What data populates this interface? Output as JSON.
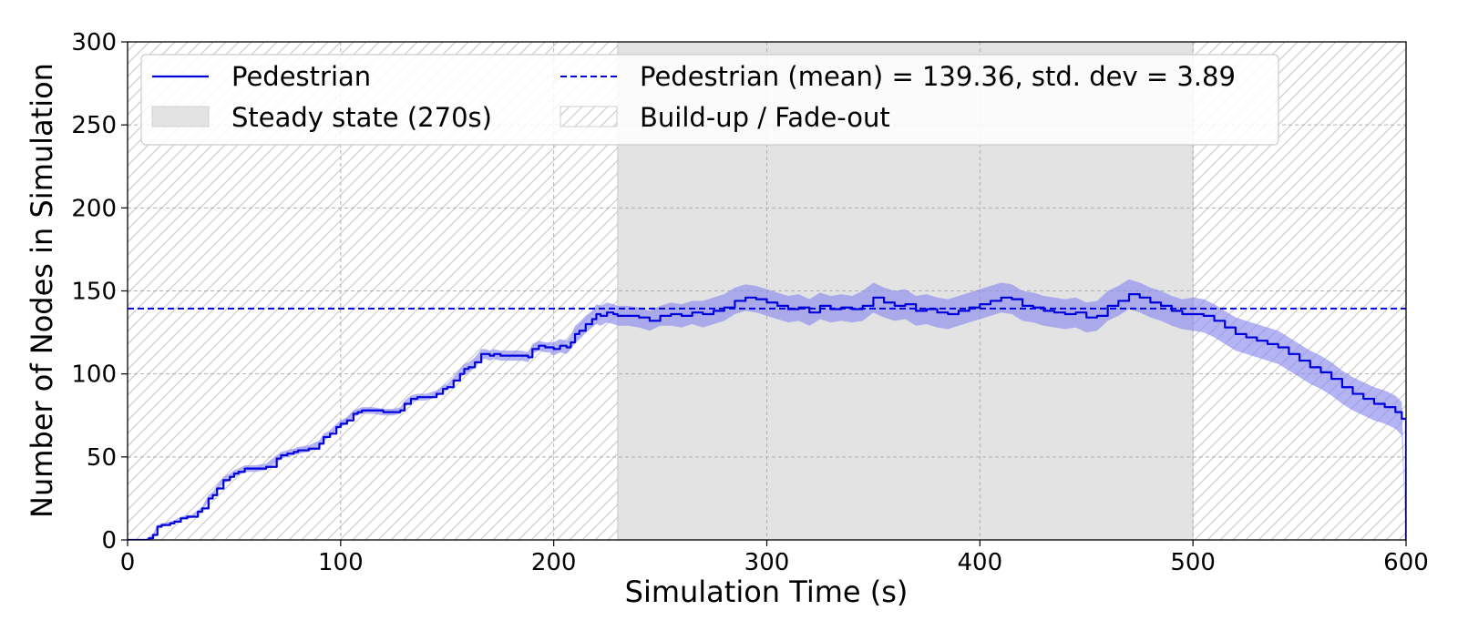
{
  "chart_data": {
    "type": "line",
    "xlabel": "Simulation Time (s)",
    "ylabel": "Number of Nodes in Simulation",
    "xlim": [
      0,
      600
    ],
    "ylim": [
      0,
      300
    ],
    "x_ticks": [
      0,
      100,
      200,
      300,
      400,
      500,
      600
    ],
    "y_ticks": [
      0,
      50,
      100,
      150,
      200,
      250,
      300
    ],
    "grid": true,
    "legend_position": "top",
    "regions": [
      {
        "type": "hatch",
        "from": 0,
        "to": 230,
        "legend": "Build-up / Fade-out"
      },
      {
        "type": "shade",
        "from": 230,
        "to": 500,
        "legend": "Steady state (270s)"
      },
      {
        "type": "hatch",
        "from": 500,
        "to": 600,
        "legend": "Build-up / Fade-out"
      }
    ],
    "mean_line": {
      "value": 139.36,
      "std": 3.89,
      "label": "Pedestrian (mean) = 139.36, std. dev = 3.89"
    },
    "series": [
      {
        "name": "Pedestrian",
        "color": "#0000dd",
        "band_color": "#8c8cf0",
        "x": [
          0,
          5,
          8,
          10,
          12,
          14,
          16,
          20,
          22,
          25,
          28,
          30,
          33,
          35,
          38,
          40,
          42,
          45,
          48,
          50,
          52,
          55,
          60,
          65,
          70,
          72,
          75,
          78,
          80,
          85,
          90,
          92,
          95,
          98,
          100,
          103,
          106,
          108,
          110,
          112,
          115,
          120,
          125,
          128,
          130,
          133,
          136,
          140,
          145,
          148,
          150,
          153,
          156,
          158,
          160,
          163,
          166,
          168,
          170,
          172,
          175,
          180,
          185,
          188,
          190,
          193,
          196,
          198,
          200,
          203,
          206,
          208,
          210,
          212,
          215,
          218,
          220,
          222,
          225,
          228,
          230,
          235,
          240,
          245,
          250,
          255,
          260,
          265,
          270,
          275,
          280,
          285,
          290,
          295,
          300,
          305,
          310,
          315,
          320,
          325,
          330,
          335,
          340,
          345,
          350,
          355,
          360,
          365,
          370,
          375,
          380,
          385,
          390,
          395,
          400,
          405,
          410,
          415,
          420,
          425,
          430,
          435,
          440,
          445,
          450,
          455,
          460,
          465,
          470,
          475,
          480,
          485,
          490,
          495,
          500,
          505,
          510,
          515,
          520,
          525,
          530,
          535,
          540,
          545,
          550,
          555,
          560,
          565,
          570,
          575,
          580,
          585,
          590,
          595,
          598,
          600
        ],
        "y": [
          0,
          0,
          0,
          1,
          3,
          8,
          9,
          10,
          11,
          13,
          14,
          14,
          17,
          19,
          25,
          27,
          31,
          36,
          38,
          40,
          41,
          43,
          43,
          44,
          49,
          51,
          52,
          53,
          54,
          55,
          58,
          62,
          64,
          68,
          70,
          72,
          76,
          77,
          78,
          78,
          78,
          77,
          77,
          78,
          82,
          85,
          86,
          86,
          88,
          91,
          92,
          96,
          100,
          103,
          104,
          107,
          112,
          112,
          111,
          112,
          111,
          111,
          111,
          110,
          115,
          117,
          116,
          116,
          115,
          117,
          116,
          119,
          124,
          126,
          130,
          133,
          136,
          135,
          137,
          136,
          135,
          135,
          134,
          132,
          135,
          136,
          135,
          137,
          136,
          138,
          140,
          144,
          146,
          145,
          143,
          141,
          139,
          140,
          137,
          141,
          139,
          140,
          139,
          141,
          146,
          143,
          141,
          142,
          138,
          139,
          137,
          136,
          138,
          140,
          142,
          144,
          146,
          145,
          141,
          140,
          138,
          137,
          136,
          137,
          134,
          135,
          141,
          144,
          148,
          146,
          143,
          141,
          138,
          136,
          136,
          135,
          132,
          128,
          124,
          122,
          120,
          118,
          116,
          112,
          108,
          104,
          101,
          97,
          92,
          88,
          85,
          82,
          80,
          77,
          73,
          0
        ],
        "lower": [
          0,
          0,
          0,
          0,
          2,
          7,
          8,
          9,
          10,
          12,
          13,
          13,
          16,
          18,
          23,
          25,
          29,
          34,
          36,
          38,
          39,
          41,
          41,
          42,
          47,
          49,
          50,
          51,
          52,
          53,
          56,
          60,
          62,
          66,
          68,
          70,
          74,
          75,
          76,
          76,
          76,
          75,
          75,
          76,
          80,
          83,
          84,
          84,
          86,
          89,
          90,
          94,
          97,
          100,
          101,
          104,
          109,
          109,
          108,
          109,
          108,
          108,
          108,
          107,
          112,
          114,
          113,
          113,
          111,
          113,
          112,
          115,
          119,
          121,
          125,
          128,
          130,
          129,
          131,
          130,
          129,
          129,
          128,
          126,
          129,
          129,
          128,
          130,
          128,
          130,
          132,
          136,
          138,
          137,
          135,
          133,
          131,
          132,
          129,
          133,
          131,
          132,
          131,
          132,
          137,
          134,
          132,
          133,
          129,
          130,
          128,
          127,
          129,
          131,
          133,
          135,
          137,
          136,
          132,
          131,
          129,
          128,
          127,
          128,
          125,
          126,
          132,
          135,
          139,
          137,
          134,
          132,
          129,
          127,
          126,
          125,
          122,
          118,
          114,
          112,
          110,
          108,
          106,
          102,
          98,
          94,
          91,
          87,
          82,
          78,
          75,
          72,
          70,
          67,
          63,
          0
        ],
        "upper": [
          0,
          0,
          0,
          2,
          4,
          9,
          10,
          11,
          12,
          14,
          15,
          15,
          18,
          20,
          27,
          29,
          33,
          38,
          40,
          42,
          43,
          45,
          45,
          46,
          51,
          53,
          54,
          55,
          56,
          57,
          60,
          64,
          66,
          70,
          72,
          74,
          78,
          79,
          80,
          80,
          80,
          79,
          79,
          80,
          84,
          87,
          88,
          88,
          90,
          93,
          94,
          98,
          103,
          106,
          107,
          110,
          115,
          115,
          114,
          115,
          114,
          114,
          114,
          113,
          118,
          120,
          119,
          119,
          119,
          121,
          120,
          123,
          129,
          131,
          135,
          138,
          142,
          141,
          143,
          142,
          141,
          141,
          140,
          138,
          141,
          143,
          142,
          144,
          144,
          146,
          148,
          152,
          154,
          153,
          151,
          149,
          147,
          148,
          145,
          149,
          147,
          148,
          147,
          150,
          155,
          152,
          150,
          151,
          147,
          148,
          146,
          145,
          147,
          149,
          151,
          153,
          155,
          154,
          150,
          149,
          147,
          146,
          145,
          146,
          143,
          144,
          150,
          153,
          157,
          155,
          152,
          150,
          147,
          145,
          146,
          145,
          142,
          138,
          134,
          132,
          130,
          128,
          126,
          122,
          118,
          114,
          111,
          107,
          102,
          98,
          95,
          92,
          90,
          87,
          83,
          0
        ]
      }
    ]
  },
  "legend": {
    "pedestrian": "Pedestrian",
    "mean": "Pedestrian (mean) = 139.36, std. dev = 3.89",
    "steady": "Steady state (270s)",
    "buildup": "Build-up / Fade-out"
  },
  "colors": {
    "line": "#0000dd",
    "band": "#8c8cf0",
    "steady": "#e3e3e3",
    "hatch": "#cfcfcf",
    "grid": "#b0b0b0"
  }
}
